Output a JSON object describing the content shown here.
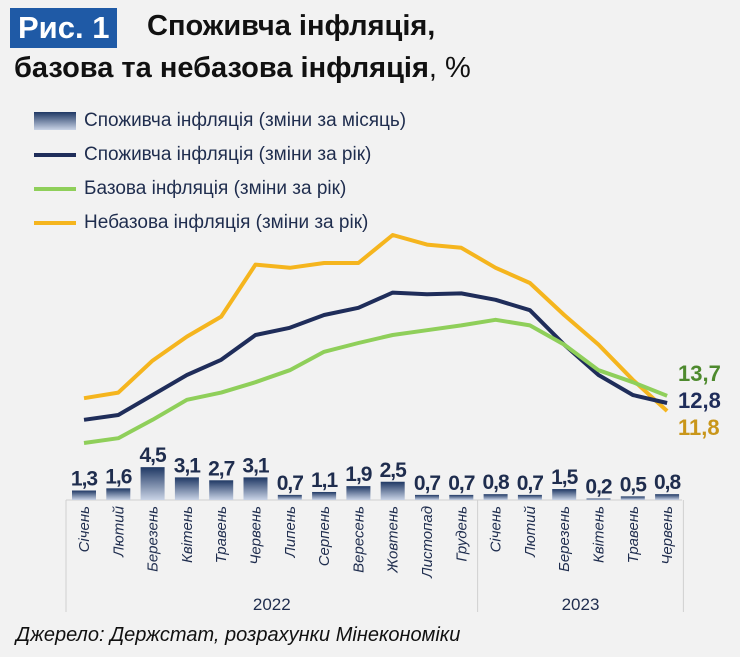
{
  "title": {
    "badge": "Рис. 1",
    "line1": "Споживча інфляція,",
    "line2": "базова та небазова інфляція",
    "unit": ", %"
  },
  "source": "Джерело: Держстат, розрахунки Мінекономіки",
  "colors": {
    "cpi_monthly": "#1f3864",
    "cpi_annual": "#1f2d5a",
    "core": "#8fcf5a",
    "noncore": "#f5b51e",
    "core_label": "#4e8a2e",
    "noncore_label": "#c9961a"
  },
  "chart_data": {
    "type": "bar+line",
    "categories": [
      "Січень",
      "Лютий",
      "Березень",
      "Квітень",
      "Травень",
      "Червень",
      "Липень",
      "Серпень",
      "Вересень",
      "Жовтень",
      "Листопад",
      "Грудень",
      "Січень",
      "Лютий",
      "Березень",
      "Квітень",
      "Травень",
      "Червень"
    ],
    "years": [
      {
        "label": "2022",
        "months": 12
      },
      {
        "label": "2023",
        "months": 6
      }
    ],
    "series": [
      {
        "name": "Споживча інфляція (зміни за місяць)",
        "type": "bar",
        "values": [
          1.3,
          1.6,
          4.5,
          3.1,
          2.7,
          3.1,
          0.7,
          1.1,
          1.9,
          2.5,
          0.7,
          0.7,
          0.8,
          0.7,
          1.5,
          0.2,
          0.5,
          0.8
        ],
        "labels": [
          "1,3",
          "1,6",
          "4,5",
          "3,1",
          "2,7",
          "3,1",
          "0,7",
          "1,1",
          "1,9",
          "2,5",
          "0,7",
          "0,7",
          "0,8",
          "0,7",
          "1,5",
          "0,2",
          "0,5",
          "0,8"
        ]
      },
      {
        "name": "Споживча інфляція (зміни за рік)",
        "type": "line",
        "values": [
          10.7,
          11.3,
          13.8,
          16.3,
          18.2,
          21.3,
          22.2,
          23.8,
          24.7,
          26.6,
          26.4,
          26.5,
          25.7,
          24.4,
          20.1,
          16.3,
          13.8,
          12.8
        ],
        "end_label": "12,8"
      },
      {
        "name": "Базова інфляція (зміни за рік)",
        "type": "line",
        "values": [
          7.8,
          8.4,
          10.7,
          13.2,
          14.1,
          15.4,
          16.9,
          19.2,
          20.3,
          21.3,
          21.9,
          22.5,
          23.2,
          22.5,
          20.1,
          16.9,
          15.4,
          13.7
        ],
        "end_label": "13,7"
      },
      {
        "name": "Небазова інфляція (зміни за рік)",
        "type": "line",
        "values": [
          13.4,
          14.1,
          18.1,
          21.1,
          23.6,
          30.1,
          29.7,
          30.3,
          30.3,
          33.8,
          32.6,
          32.2,
          29.7,
          27.8,
          23.8,
          20.1,
          15.7,
          11.8
        ],
        "end_label": "11,8"
      }
    ],
    "grid": false,
    "legend_position": "top-left"
  }
}
